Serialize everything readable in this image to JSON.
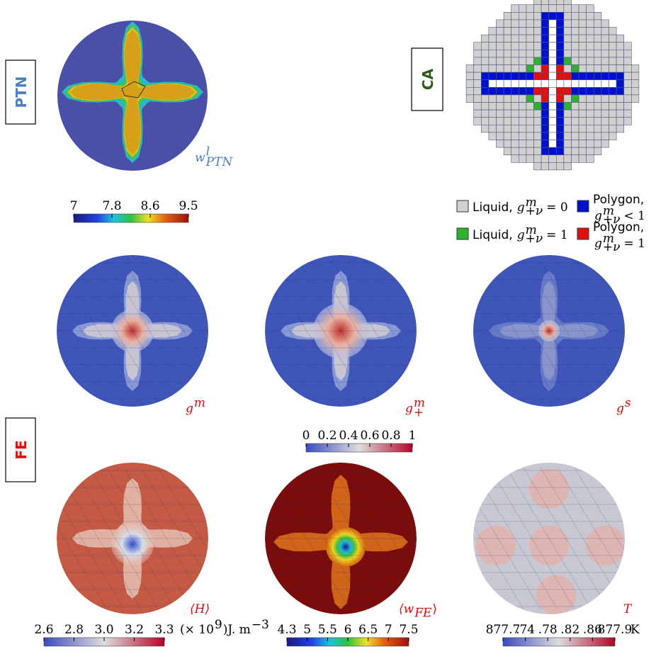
{
  "ptn": {
    "label": "PTN",
    "field": {
      "base": "w",
      "sup": "l",
      "sub": "PTN"
    },
    "colorbar_ticks": [
      "7",
      "7.8",
      "8.6",
      "9.5"
    ]
  },
  "ca": {
    "label": "CA",
    "legend": [
      {
        "text": "Liquid,",
        "var": "g",
        "sup": "m",
        "sub": "+ν",
        "rel": "= 0"
      },
      {
        "text": "Polygon,",
        "var": "g",
        "sup": "m",
        "sub": "+ν",
        "rel": "< 1"
      },
      {
        "text": "Liquid,",
        "var": "g",
        "sup": "m",
        "sub": "+ν",
        "rel": "= 1"
      },
      {
        "text": "Polygon,",
        "var": "g",
        "sup": "m",
        "sub": "+ν",
        "rel": "= 1"
      }
    ]
  },
  "fe": {
    "label": "FE",
    "fields": [
      {
        "base": "g",
        "sup": "m"
      },
      {
        "base": "g",
        "sup": "m",
        "sub": "+"
      },
      {
        "base": "g",
        "sup": "s"
      },
      {
        "base": "⟨H⟩"
      },
      {
        "base": "⟨w",
        "sub": "FE",
        "post": "⟩"
      },
      {
        "base": "T"
      }
    ],
    "colorbars": [
      {
        "ticks": [
          "0",
          "0.2",
          "0.4",
          "0.6",
          "0.8",
          "1"
        ]
      },
      {
        "ticks": [
          "2.6",
          "2.8",
          "3.0",
          "3.2",
          "3.3"
        ],
        "unit": {
          "pre": "(× 10",
          "exp": "9",
          "mid": ")J. m",
          "exp2": "−3"
        }
      },
      {
        "ticks": [
          "4.3",
          "5",
          "5.5",
          "6",
          "6.5",
          "7",
          "7.5"
        ]
      },
      {
        "ticks": [
          "877.7",
          ".74",
          ".78",
          ".82",
          ".86",
          "877.9"
        ],
        "unit": {
          "pre": "K"
        }
      }
    ]
  }
}
